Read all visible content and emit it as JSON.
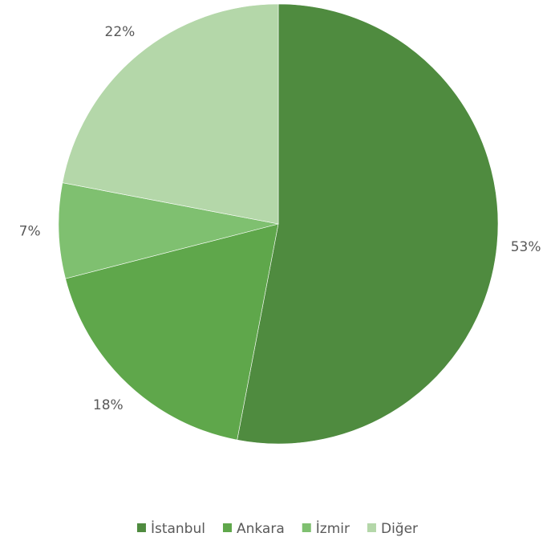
{
  "chart_data": {
    "type": "pie",
    "categories": [
      "İstanbul",
      "Ankara",
      "İzmir",
      "Diğer"
    ],
    "values": [
      53,
      18,
      7,
      22
    ],
    "value_labels": [
      "53%",
      "18%",
      "7%",
      "22%"
    ],
    "colors": [
      "#4f8b3f",
      "#5fa74b",
      "#7fc070",
      "#b4d7a9"
    ],
    "legend": "bottom"
  }
}
